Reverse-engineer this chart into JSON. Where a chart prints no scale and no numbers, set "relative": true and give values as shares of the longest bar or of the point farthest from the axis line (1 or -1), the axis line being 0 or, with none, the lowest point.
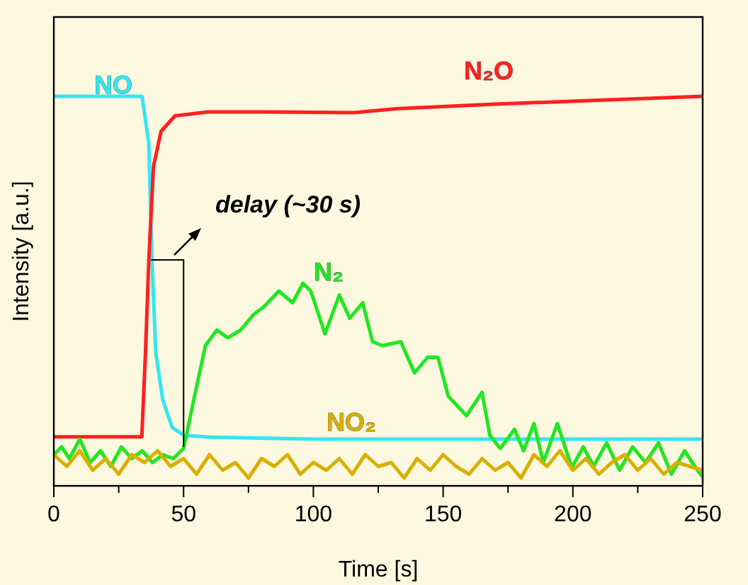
{
  "chart_data": {
    "type": "line",
    "relative": true,
    "xlabel": "Time [s]",
    "ylabel": "Intensity [a.u.]",
    "xlim": [
      0,
      250
    ],
    "xticks": [
      0,
      {
        "value": 25,
        "label": null
      },
      50,
      {
        "value": 75,
        "label": null
      },
      100,
      {
        "value": 125,
        "label": null
      },
      150,
      {
        "value": 175,
        "label": null
      },
      200,
      {
        "value": 225,
        "label": null
      },
      250
    ],
    "tick_labels": "x",
    "grid": false,
    "legend": false,
    "marker": "none",
    "line_style": "solid",
    "annotations": [
      "delay (~30 s)"
    ],
    "series": [
      {
        "name": "NO",
        "color": "#33e6f0",
        "x": [
          0,
          34,
          36.6,
          37.8,
          39.3,
          42,
          45.6,
          50,
          60,
          100,
          150,
          200,
          250
        ],
        "values": [
          1.0,
          1.0,
          0.88,
          0.58,
          0.34,
          0.22,
          0.15,
          0.13,
          0.125,
          0.12,
          0.12,
          0.12,
          0.12
        ]
      },
      {
        "name": "N₂O",
        "color": "#ff2020",
        "x": [
          0,
          33.9,
          35.3,
          36.6,
          38.4,
          41.3,
          46.7,
          59.4,
          80,
          115.7,
          132,
          170,
          210,
          250
        ],
        "values": [
          0.126,
          0.126,
          0.34,
          0.58,
          0.82,
          0.91,
          0.95,
          0.96,
          0.96,
          0.958,
          0.968,
          0.98,
          0.99,
          1.0
        ]
      },
      {
        "name": "N₂",
        "color": "#22e622",
        "x": [
          0,
          3,
          6,
          10,
          14,
          18,
          22,
          26,
          30,
          34,
          38,
          42,
          46,
          50,
          53.9,
          58.4,
          62.8,
          67,
          72,
          77,
          81,
          86.7,
          92,
          96,
          99,
          104.5,
          110,
          114,
          119,
          122.8,
          126.6,
          133.7,
          139,
          144,
          148,
          152,
          159,
          165,
          168,
          172,
          177.5,
          181,
          185,
          188.6,
          194,
          199.6,
          204,
          208,
          213,
          218,
          223,
          228,
          233,
          238,
          243,
          248,
          250
        ],
        "values": [
          0.08,
          0.1,
          0.07,
          0.12,
          0.06,
          0.09,
          0.05,
          0.1,
          0.07,
          0.09,
          0.06,
          0.08,
          0.07,
          0.096,
          0.22,
          0.36,
          0.4,
          0.38,
          0.4,
          0.44,
          0.46,
          0.5,
          0.47,
          0.52,
          0.5,
          0.39,
          0.49,
          0.43,
          0.47,
          0.37,
          0.36,
          0.37,
          0.29,
          0.33,
          0.33,
          0.23,
          0.18,
          0.24,
          0.13,
          0.096,
          0.145,
          0.09,
          0.16,
          0.06,
          0.16,
          0.047,
          0.1,
          0.05,
          0.11,
          0.04,
          0.1,
          0.06,
          0.11,
          0.03,
          0.09,
          0.04,
          0.023
        ]
      },
      {
        "name": "NO₂",
        "color": "#d8b000",
        "x": [
          0,
          5,
          10,
          15,
          20,
          25,
          30,
          35,
          40,
          45,
          50,
          55,
          60,
          65,
          70,
          75,
          80,
          85,
          90,
          95,
          100,
          105,
          110,
          115,
          120,
          125,
          130,
          135,
          140,
          145,
          150,
          155,
          160,
          165,
          170,
          175,
          180,
          185,
          190,
          195,
          200,
          205,
          210,
          215,
          220,
          225,
          230,
          235,
          240,
          245,
          250
        ],
        "values": [
          0.08,
          0.05,
          0.09,
          0.04,
          0.07,
          0.03,
          0.08,
          0.06,
          0.09,
          0.05,
          0.07,
          0.03,
          0.08,
          0.04,
          0.06,
          0.02,
          0.07,
          0.05,
          0.08,
          0.03,
          0.06,
          0.04,
          0.07,
          0.03,
          0.08,
          0.05,
          0.06,
          0.02,
          0.07,
          0.04,
          0.08,
          0.05,
          0.03,
          0.07,
          0.04,
          0.06,
          0.02,
          0.08,
          0.05,
          0.09,
          0.04,
          0.07,
          0.03,
          0.06,
          0.08,
          0.04,
          0.07,
          0.03,
          0.06,
          0.05,
          0.04
        ]
      }
    ]
  }
}
